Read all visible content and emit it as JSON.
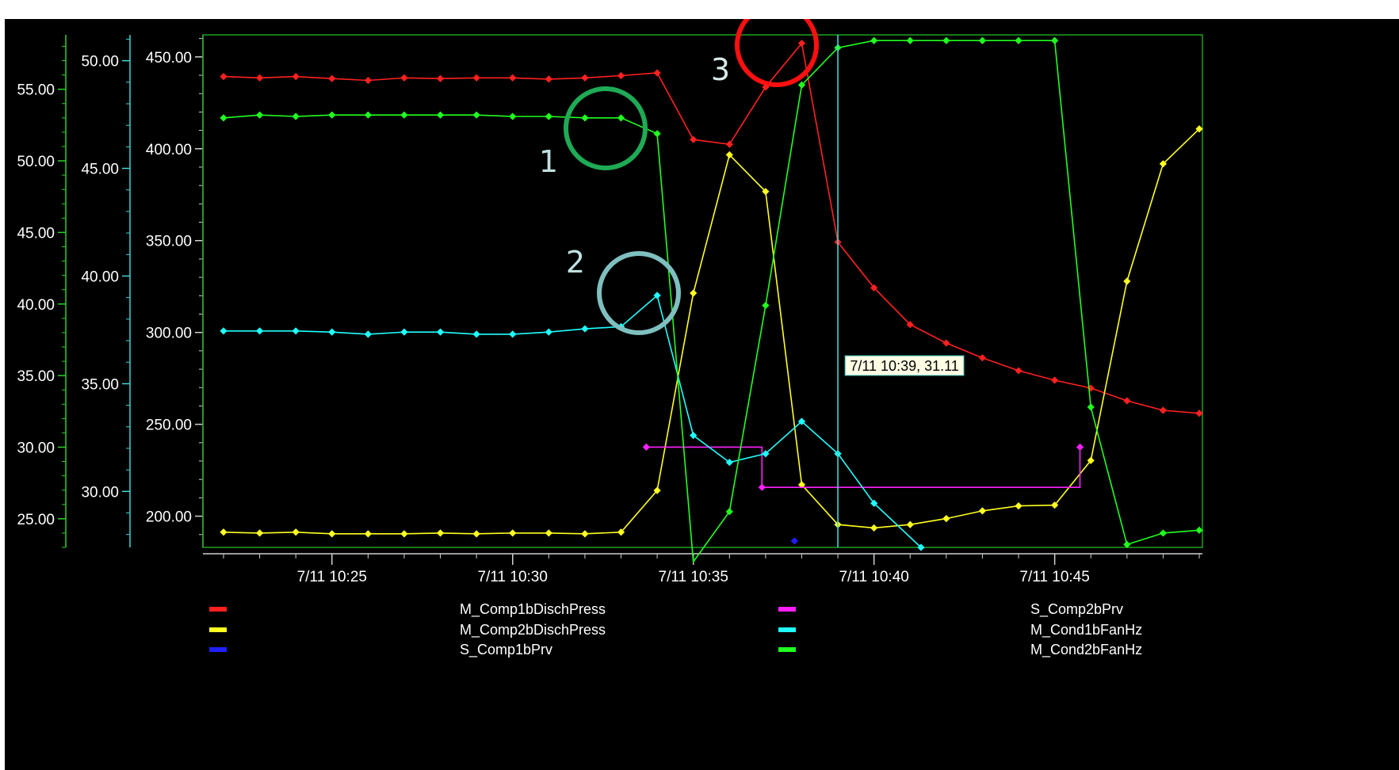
{
  "colors": {
    "background": "#000000",
    "plot_border": "#1fa01f",
    "axis_gray": "#cfcfcf",
    "axis_green": "#2ccf2c",
    "axis_cyan": "#3fd6d6",
    "tooltip_bg": "#ffffe6",
    "tooltip_border": "#2aa8a8"
  },
  "chart_data": {
    "type": "line",
    "title": "",
    "x_axis": {
      "range": [
        "7/11 10:22",
        "7/11 10:49"
      ],
      "tick_labels": [
        "7/11 10:25",
        "7/11 10:30",
        "7/11 10:35",
        "7/11 10:40",
        "7/11 10:45"
      ]
    },
    "y_axes": [
      {
        "id": "press",
        "color": "#cfcfcf",
        "range": [
          183,
          462
        ],
        "tick_labels": [
          "200.00",
          "250.00",
          "300.00",
          "350.00",
          "400.00",
          "450.00"
        ]
      },
      {
        "id": "fan1",
        "color": "#3fd6d6",
        "range": [
          27.4,
          51.2
        ],
        "tick_labels": [
          "30.00",
          "35.00",
          "40.00",
          "45.00",
          "50.00"
        ]
      },
      {
        "id": "fan2",
        "color": "#2ccf2c",
        "range": [
          23.0,
          58.8
        ],
        "tick_labels": [
          "25.00",
          "30.00",
          "35.00",
          "40.00",
          "45.00",
          "50.00",
          "55.00"
        ]
      }
    ],
    "x": [
      "10:22",
      "10:23",
      "10:24",
      "10:25",
      "10:26",
      "10:27",
      "10:28",
      "10:29",
      "10:30",
      "10:31",
      "10:32",
      "10:33",
      "10:34",
      "10:35",
      "10:36",
      "10:37",
      "10:38",
      "10:39",
      "10:40",
      "10:41",
      "10:42",
      "10:43",
      "10:44",
      "10:45",
      "10:46",
      "10:47",
      "10:48",
      "10:49"
    ],
    "series": [
      {
        "name": "M_Comp1bDischPress",
        "color": "#ff2020",
        "axis": "press",
        "values": [
          439.3,
          438.6,
          439.3,
          438.2,
          437.2,
          438.6,
          438.2,
          438.6,
          438.6,
          437.9,
          438.6,
          439.8,
          441.3,
          405.0,
          402.4,
          433.6,
          457.4,
          349.2,
          324.3,
          304.3,
          294.2,
          286.2,
          279.2,
          274.0,
          269.7,
          262.8,
          257.6,
          256.0
        ]
      },
      {
        "name": "M_Comp2bDischPress",
        "color": "#ffff20",
        "axis": "press",
        "values": [
          191.3,
          190.8,
          191.3,
          190.4,
          190.4,
          190.4,
          190.8,
          190.4,
          190.8,
          190.8,
          190.4,
          191.3,
          214.0,
          321.4,
          396.7,
          376.7,
          217.1,
          195.4,
          193.6,
          195.4,
          198.7,
          202.9,
          205.6,
          206.0,
          230.3,
          327.9,
          391.8,
          410.8
        ]
      },
      {
        "name": "S_Comp1bPrv",
        "color": "#2020ff",
        "axis": "press",
        "x": [
          "10:37.8"
        ],
        "values": [
          186.5
        ]
      },
      {
        "name": "S_Comp2bPrv",
        "color": "#ff20ff",
        "axis": "press",
        "step": true,
        "x": [
          "10:33.7",
          "10:36.9",
          "10:36.9",
          "10:45.7",
          "10:45.7"
        ],
        "values": [
          237.6,
          237.6,
          215.7,
          215.7,
          237.6
        ]
      },
      {
        "name": "M_Cond1bFanHz",
        "color": "#20ffff",
        "axis": "fan1",
        "x": [
          "10:22",
          "10:23",
          "10:24",
          "10:25",
          "10:26",
          "10:27",
          "10:28",
          "10:29",
          "10:30",
          "10:31",
          "10:32",
          "10:33",
          "10:34",
          "10:35",
          "10:36",
          "10:37",
          "10:38",
          "10:39",
          "10:40",
          "10:41.3"
        ],
        "values": [
          37.45,
          37.45,
          37.45,
          37.4,
          37.3,
          37.4,
          37.4,
          37.3,
          37.3,
          37.4,
          37.55,
          37.65,
          39.1,
          32.6,
          31.35,
          31.75,
          33.25,
          31.75,
          29.45,
          27.4
        ]
      },
      {
        "name": "M_Cond2bFanHz",
        "color": "#20ff20",
        "axis": "fan2",
        "values": [
          53.0,
          53.2,
          53.1,
          53.2,
          53.2,
          53.2,
          53.2,
          53.2,
          53.1,
          53.1,
          53.0,
          53.0,
          51.9,
          22.0,
          25.5,
          39.9,
          55.3,
          57.9,
          58.4,
          58.4,
          58.4,
          58.4,
          58.4,
          58.4,
          32.8,
          23.2,
          24.0,
          24.2
        ]
      }
    ],
    "legend": {
      "placement": "bottom",
      "items": [
        {
          "label": "M_Comp1bDischPress",
          "color": "#ff2020"
        },
        {
          "label": "M_Comp2bDischPress",
          "color": "#ffff20"
        },
        {
          "label": "S_Comp1bPrv",
          "color": "#2020ff"
        },
        {
          "label": "S_Comp2bPrv",
          "color": "#ff20ff"
        },
        {
          "label": "M_Cond1bFanHz",
          "color": "#20ffff"
        },
        {
          "label": "M_Cond2bFanHz",
          "color": "#20ff20"
        }
      ]
    },
    "cursor": {
      "x": "10:39",
      "value_text": "7/11 10:39, 31.11"
    },
    "annotations": [
      {
        "label": "1",
        "color": "#1faa55",
        "near": "M_Cond2bFanHz at 10:33.5"
      },
      {
        "label": "2",
        "color": "#7fbfbf",
        "near": "M_Cond1bFanHz at 10:34"
      },
      {
        "label": "3",
        "color": "#ff1010",
        "near": "M_Comp1bDischPress at 10:38"
      }
    ]
  }
}
